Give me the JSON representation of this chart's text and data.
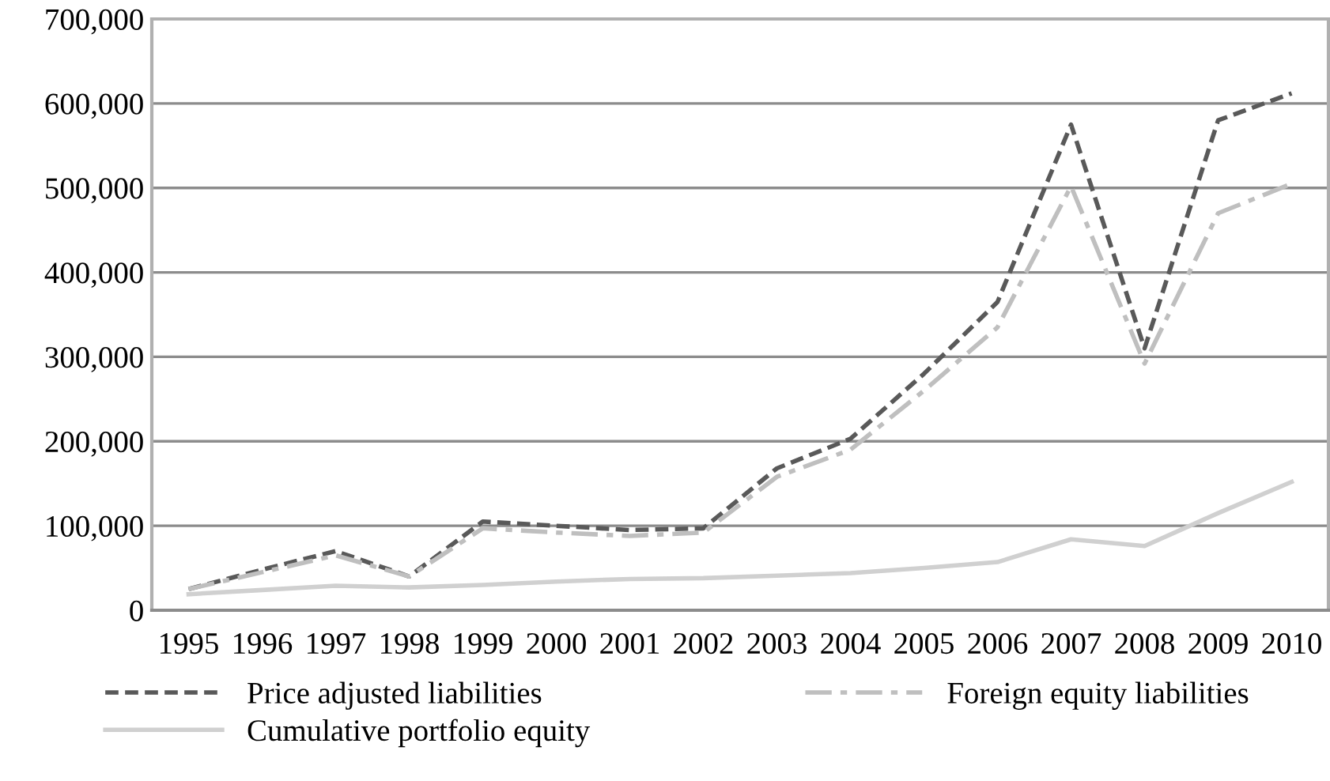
{
  "chart_data": {
    "type": "line",
    "categories": [
      "1995",
      "1996",
      "1997",
      "1998",
      "1999",
      "2000",
      "2001",
      "2002",
      "2003",
      "2004",
      "2005",
      "2006",
      "2007",
      "2008",
      "2009",
      "2010"
    ],
    "series": [
      {
        "name": "Price adjusted liabilities",
        "color": "#595959",
        "line_style": "dashed",
        "values": [
          25000,
          48000,
          70000,
          40000,
          105000,
          100000,
          95000,
          97000,
          168000,
          203000,
          280000,
          365000,
          575000,
          310000,
          580000,
          612000
        ]
      },
      {
        "name": "Foreign equity liabilities",
        "color": "#bfbfbf",
        "line_style": "dashdot",
        "values": [
          25000,
          45000,
          65000,
          40000,
          97000,
          92000,
          88000,
          92000,
          158000,
          190000,
          260000,
          335000,
          502000,
          292000,
          470000,
          505000
        ]
      },
      {
        "name": "Cumulative portfolio equity",
        "color": "#d0d0d0",
        "line_style": "solid",
        "values": [
          19000,
          24000,
          29000,
          27000,
          30000,
          34000,
          37000,
          38000,
          41000,
          44000,
          50000,
          57000,
          84000,
          76000,
          115000,
          152000
        ]
      }
    ],
    "ylim": [
      0,
      700000
    ],
    "yticks": [
      {
        "value": 0,
        "label": "0"
      },
      {
        "value": 100000,
        "label": "100,000"
      },
      {
        "value": 200000,
        "label": "200,000"
      },
      {
        "value": 300000,
        "label": "300,000"
      },
      {
        "value": 400000,
        "label": "400,000"
      },
      {
        "value": 500000,
        "label": "500,000"
      },
      {
        "value": 600000,
        "label": "600,000"
      },
      {
        "value": 700000,
        "label": "700,000"
      }
    ],
    "grid": "y",
    "legend": "bottom",
    "marker": "none"
  }
}
